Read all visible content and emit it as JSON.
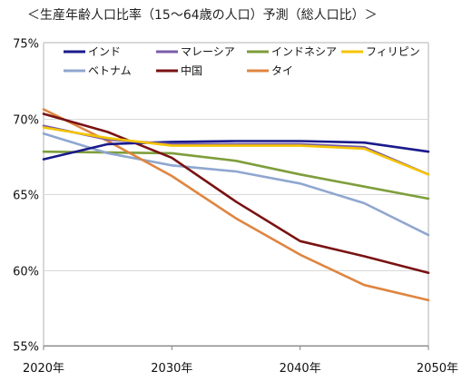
{
  "chart_data": {
    "type": "line",
    "title": "＜生産年齢人口比率（15～64歳の人口）予測（総人口比）＞",
    "xlabel": "",
    "ylabel": "",
    "x": [
      2020,
      2025,
      2030,
      2035,
      2040,
      2045,
      2050
    ],
    "xlim": [
      2020,
      2050
    ],
    "ylim": [
      55,
      75
    ],
    "xticks": [
      {
        "value": 2020,
        "label": "2020年"
      },
      {
        "value": 2030,
        "label": "2030年"
      },
      {
        "value": 2040,
        "label": "2040年"
      },
      {
        "value": 2050,
        "label": "2050年"
      }
    ],
    "yticks": [
      {
        "value": 55,
        "label": "55%"
      },
      {
        "value": 60,
        "label": "60%"
      },
      {
        "value": 65,
        "label": "65%"
      },
      {
        "value": 70,
        "label": "70%"
      },
      {
        "value": 75,
        "label": "75%"
      }
    ],
    "grid": true,
    "legend": "top",
    "series": [
      {
        "name": "インド",
        "color": "#1a1a8c",
        "values": [
          67.3,
          68.3,
          68.45,
          68.5,
          68.5,
          68.4,
          67.8
        ]
      },
      {
        "name": "マレーシア",
        "color": "#7a5ea8",
        "values": [
          69.5,
          68.6,
          68.3,
          68.3,
          68.3,
          68.1,
          66.3
        ]
      },
      {
        "name": "インドネシア",
        "color": "#7e9e3c",
        "values": [
          67.8,
          67.75,
          67.7,
          67.2,
          66.3,
          65.5,
          64.7
        ]
      },
      {
        "name": "フィリピン",
        "color": "#f5c400",
        "values": [
          69.4,
          68.7,
          68.2,
          68.2,
          68.2,
          68.0,
          66.3
        ]
      },
      {
        "name": "ベトナム",
        "color": "#8fa7d0",
        "values": [
          69.0,
          67.7,
          66.9,
          66.5,
          65.7,
          64.4,
          62.3
        ]
      },
      {
        "name": "中国",
        "color": "#7a1212",
        "values": [
          70.3,
          69.1,
          67.4,
          64.5,
          61.9,
          60.9,
          59.8
        ]
      },
      {
        "name": "タイ",
        "color": "#df8540",
        "values": [
          70.6,
          68.5,
          66.2,
          63.4,
          61.0,
          59.0,
          58.0
        ]
      }
    ]
  }
}
